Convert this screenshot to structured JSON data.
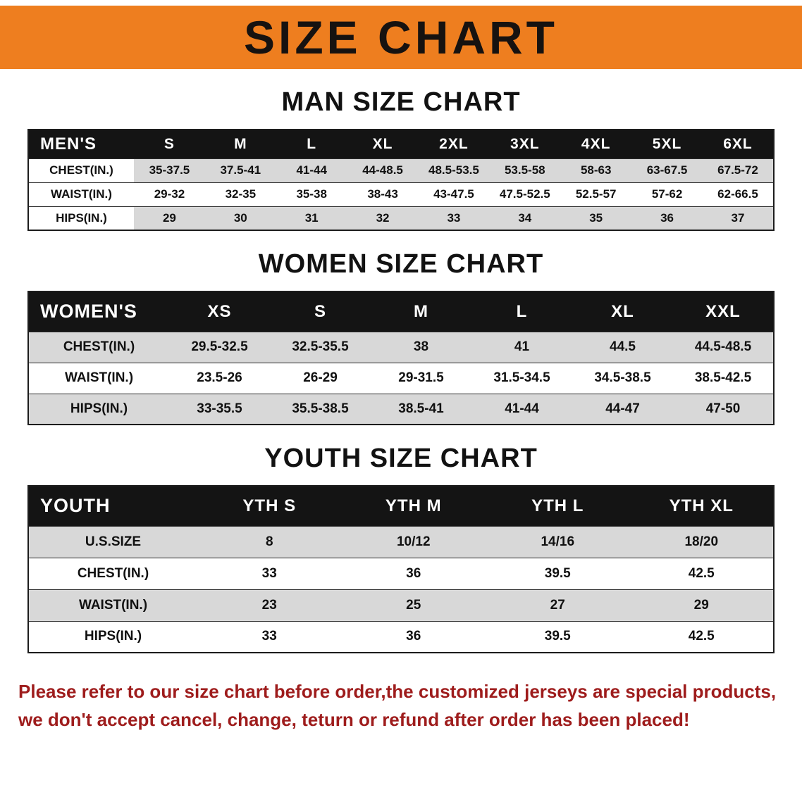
{
  "banner": {
    "title": "SIZE CHART",
    "bg_color": "#EE7E1F"
  },
  "sections": [
    {
      "id": "men",
      "heading": "MAN SIZE CHART",
      "header": [
        "MEN'S",
        "S",
        "M",
        "L",
        "XL",
        "2XL",
        "3XL",
        "4XL",
        "5XL",
        "6XL"
      ],
      "rows": [
        [
          "CHEST(IN.)",
          "35-37.5",
          "37.5-41",
          "41-44",
          "44-48.5",
          "48.5-53.5",
          "53.5-58",
          "58-63",
          "63-67.5",
          "67.5-72"
        ],
        [
          "WAIST(IN.)",
          "29-32",
          "32-35",
          "35-38",
          "38-43",
          "43-47.5",
          "47.5-52.5",
          "52.5-57",
          "57-62",
          "62-66.5"
        ],
        [
          "HIPS(IN.)",
          "29",
          "30",
          "31",
          "32",
          "33",
          "34",
          "35",
          "36",
          "37"
        ]
      ]
    },
    {
      "id": "women",
      "heading": "WOMEN SIZE CHART",
      "header": [
        "WOMEN'S",
        "XS",
        "S",
        "M",
        "L",
        "XL",
        "XXL"
      ],
      "rows": [
        [
          "CHEST(IN.)",
          "29.5-32.5",
          "32.5-35.5",
          "38",
          "41",
          "44.5",
          "44.5-48.5"
        ],
        [
          "WAIST(IN.)",
          "23.5-26",
          "26-29",
          "29-31.5",
          "31.5-34.5",
          "34.5-38.5",
          "38.5-42.5"
        ],
        [
          "HIPS(IN.)",
          "33-35.5",
          "35.5-38.5",
          "38.5-41",
          "41-44",
          "44-47",
          "47-50"
        ]
      ]
    },
    {
      "id": "youth",
      "heading": "YOUTH SIZE CHART",
      "header": [
        "YOUTH",
        "YTH S",
        "YTH M",
        "YTH L",
        "YTH XL"
      ],
      "rows": [
        [
          "U.S.SIZE",
          "8",
          "10/12",
          "14/16",
          "18/20"
        ],
        [
          "CHEST(IN.)",
          "33",
          "36",
          "39.5",
          "42.5"
        ],
        [
          "WAIST(IN.)",
          "23",
          "25",
          "27",
          "29"
        ],
        [
          "HIPS(IN.)",
          "33",
          "36",
          "39.5",
          "42.5"
        ]
      ]
    }
  ],
  "disclaimer": {
    "line1": "Please refer to our size chart before order,the customized jerseys are special products,",
    "line2": "we don't accept cancel, change, teturn or refund after order has been placed!",
    "color": "#9E1C1C"
  }
}
